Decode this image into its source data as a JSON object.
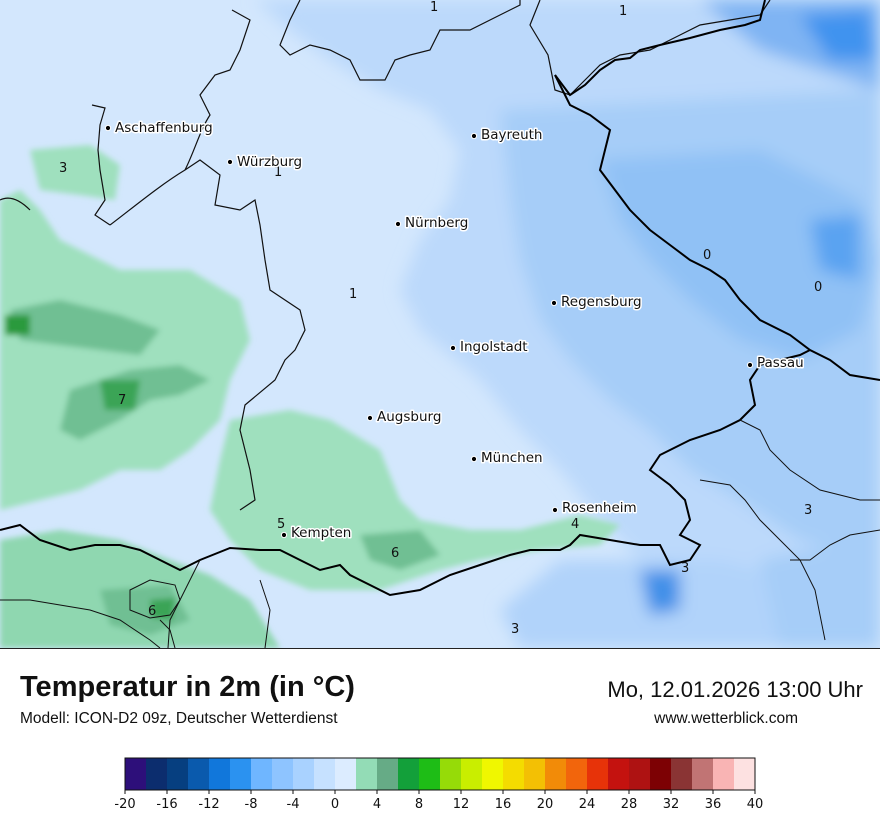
{
  "map": {
    "cities": [
      {
        "name": "Aschaffenburg"
      },
      {
        "name": "Würzburg"
      },
      {
        "name": "Bayreuth"
      },
      {
        "name": "Nürnberg"
      },
      {
        "name": "Regensburg"
      },
      {
        "name": "Ingolstadt"
      },
      {
        "name": "Passau"
      },
      {
        "name": "Augsburg"
      },
      {
        "name": "München"
      },
      {
        "name": "Rosenheim"
      },
      {
        "name": "Kempten"
      }
    ],
    "isotherm_labels": [
      {
        "text": "1"
      },
      {
        "text": "1"
      },
      {
        "text": "3"
      },
      {
        "text": "1"
      },
      {
        "text": "1"
      },
      {
        "text": "0"
      },
      {
        "text": "0"
      },
      {
        "text": "7"
      },
      {
        "text": "5"
      },
      {
        "text": "4"
      },
      {
        "text": "3"
      },
      {
        "text": "6"
      },
      {
        "text": "3"
      },
      {
        "text": "6"
      },
      {
        "text": "3"
      }
    ]
  },
  "footer": {
    "title": "Temperatur in 2m (in °C)",
    "model": "Modell: ICON-D2 09z, Deutscher Wetterdienst",
    "datetime": "Mo, 12.01.2026 13:00 Uhr",
    "website": "www.wetterblick.com"
  },
  "legend": {
    "colors": [
      "#2d0f7a",
      "#0c2d6e",
      "#063f80",
      "#0a5aad",
      "#1177db",
      "#2b92f0",
      "#6fb6ff",
      "#8ec4ff",
      "#a9d2ff",
      "#c6e1ff",
      "#dcecff",
      "#93dcb6",
      "#66ab86",
      "#13a03a",
      "#1ebd16",
      "#96db08",
      "#c9ee00",
      "#f0f700",
      "#f4dc00",
      "#f3c004",
      "#f28b08",
      "#f2650c",
      "#e73309",
      "#c4120f",
      "#ae1212",
      "#7d0104",
      "#8a3434",
      "#c17474",
      "#f9b4b4",
      "#fde1e1"
    ],
    "tick_labels": [
      "-20",
      "-16",
      "-12",
      "-8",
      "-4",
      "0",
      "4",
      "8",
      "12",
      "16",
      "20",
      "24",
      "28",
      "32",
      "36",
      "40"
    ],
    "min": -20,
    "max": 40,
    "step": 2
  }
}
